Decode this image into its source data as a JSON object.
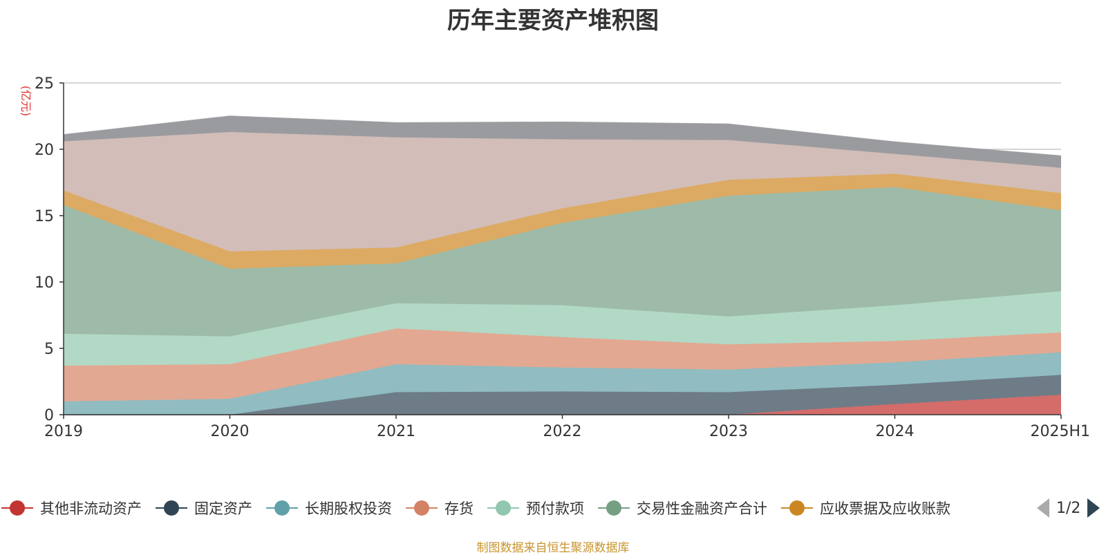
{
  "chart_data": {
    "type": "area",
    "stacked": true,
    "title": "历年主要资产堆积图",
    "ylabel": "(亿元)",
    "xlabel": "",
    "categories": [
      "2019",
      "2020",
      "2021",
      "2022",
      "2023",
      "2024",
      "2025H1"
    ],
    "ylim": [
      0,
      25
    ],
    "yticks": [
      0,
      5,
      10,
      15,
      20,
      25
    ],
    "grid": true,
    "legend_position": "bottom",
    "series": [
      {
        "name": "其他非流动资产",
        "color": "#c23531",
        "fill": "#d46c6a",
        "values": [
          0,
          0,
          0,
          0,
          0,
          0.8,
          1.5
        ]
      },
      {
        "name": "固定资产",
        "color": "#2f4554",
        "fill": "#6e7c87",
        "values": [
          0,
          0,
          1.7,
          1.75,
          1.7,
          1.45,
          1.5
        ]
      },
      {
        "name": "长期股权投资",
        "color": "#61a0a8",
        "fill": "#90bcc2",
        "values": [
          1,
          1.2,
          2.1,
          1.8,
          1.7,
          1.7,
          1.7
        ]
      },
      {
        "name": "存货",
        "color": "#d48265",
        "fill": "#e2a891",
        "values": [
          2.7,
          2.6,
          2.7,
          2.3,
          1.9,
          1.6,
          1.5
        ]
      },
      {
        "name": "预付款项",
        "color": "#91c7ae",
        "fill": "#b2d8c6",
        "values": [
          2.4,
          2.1,
          1.9,
          2.4,
          2.1,
          2.7,
          3.1
        ]
      },
      {
        "name": "交易性金融资产合计",
        "color": "#749f83",
        "fill": "#9dbba8",
        "values": [
          9.7,
          5.1,
          3.0,
          6.2,
          9.1,
          8.9,
          6.1
        ]
      },
      {
        "name": "应收票据及应收账款",
        "color": "#ca8622",
        "fill": "#dcaa63",
        "values": [
          1.1,
          1.3,
          1.2,
          1.1,
          1.2,
          1.0,
          1.3
        ]
      },
      {
        "name": "",
        "color": "#bda29a",
        "fill": "#d2bdb8",
        "values": [
          3.7,
          9.0,
          8.3,
          5.2,
          3.0,
          1.5,
          1.9
        ]
      },
      {
        "name": "",
        "color": "#6e7074",
        "fill": "#9a9b9f",
        "values": [
          0.5,
          1.2,
          1.1,
          1.3,
          1.2,
          0.9,
          0.9
        ]
      }
    ]
  },
  "legend": {
    "pager": "1/2"
  },
  "source_note": "制图数据来自恒生聚源数据库"
}
